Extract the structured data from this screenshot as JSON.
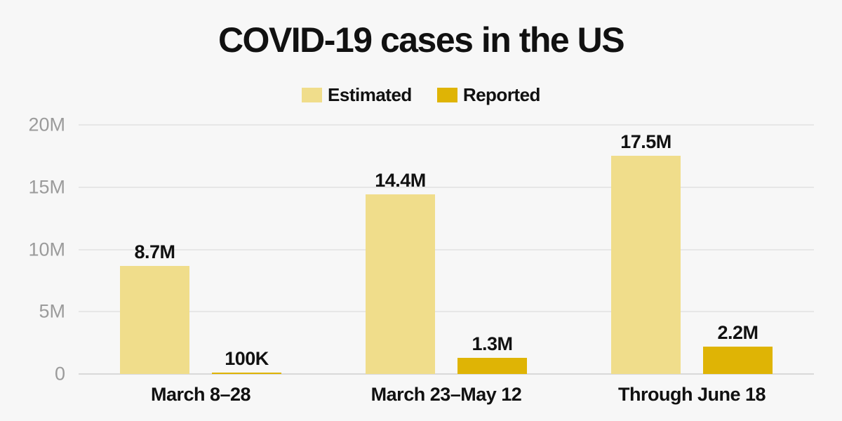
{
  "title": "COVID-19 cases in the US",
  "colors": {
    "background": "#f7f7f7",
    "gridline": "#e7e7e7",
    "baseline": "#d9d9d9",
    "axis_label": "#9b9b9b",
    "text": "#111111",
    "estimated": "#f0dd8b",
    "reported": "#dfb405"
  },
  "chart_data": {
    "type": "bar",
    "title": "COVID-19 cases in the US",
    "categories": [
      "March 8–28",
      "March 23–May 12",
      "Through June 18"
    ],
    "series": [
      {
        "name": "Estimated",
        "color": "#f0dd8b",
        "values": [
          8700000,
          14400000,
          17500000
        ],
        "value_labels": [
          "8.7M",
          "14.4M",
          "17.5M"
        ]
      },
      {
        "name": "Reported",
        "color": "#dfb405",
        "values": [
          100000,
          1300000,
          2200000
        ],
        "value_labels": [
          "100K",
          "1.3M",
          "2.2M"
        ]
      }
    ],
    "y_axis": {
      "max": 20000000,
      "ticks": [
        {
          "value": 0,
          "label": "0"
        },
        {
          "value": 5000000,
          "label": "5M"
        },
        {
          "value": 10000000,
          "label": "10M"
        },
        {
          "value": 15000000,
          "label": "15M"
        },
        {
          "value": 20000000,
          "label": "20M"
        }
      ]
    },
    "ylim": [
      0,
      20000000
    ],
    "grid": true,
    "legend_position": "top"
  }
}
